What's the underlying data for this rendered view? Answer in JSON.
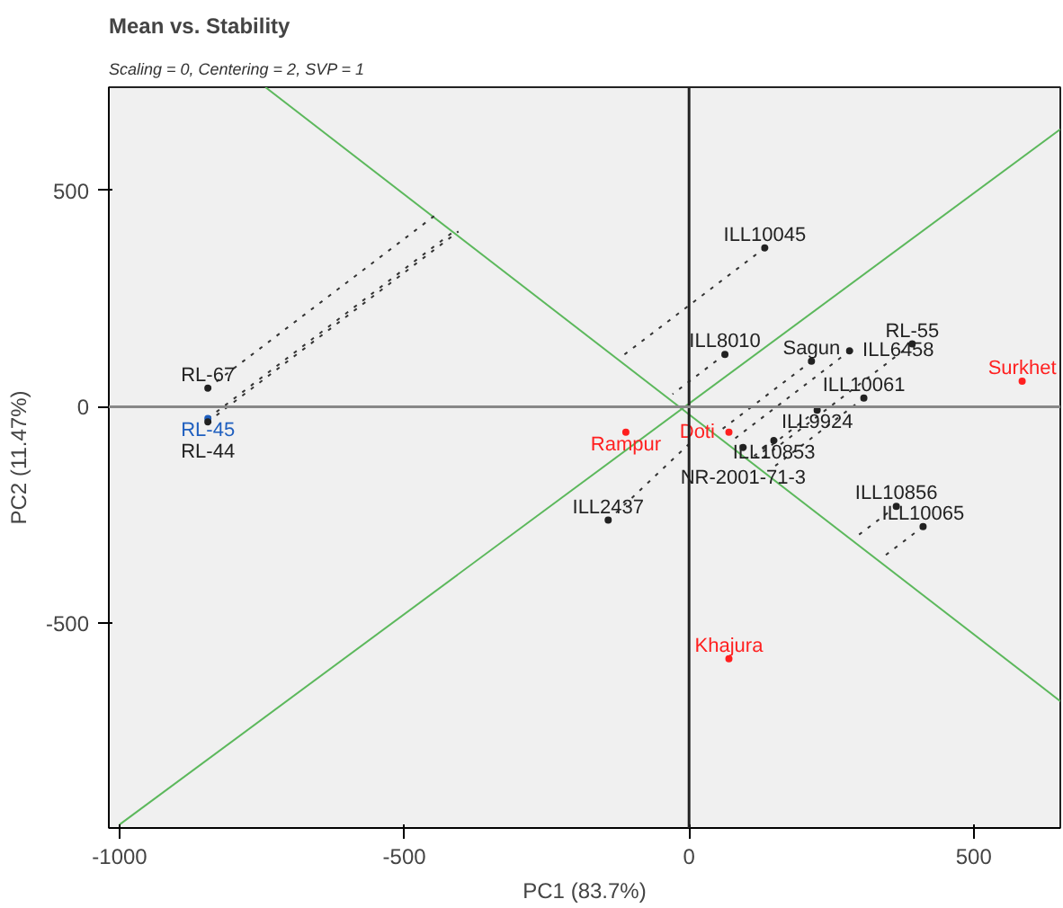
{
  "chart_data": {
    "type": "scatter",
    "title": "Mean vs. Stability",
    "subtitle": "Scaling = 0, Centering = 2, SVP = 1",
    "xlabel": "PC1 (83.7%)",
    "ylabel": "PC2 (11.47%)",
    "xlim": [
      -1019,
      652
    ],
    "ylim": [
      -973,
      738
    ],
    "xticks": [
      -1000,
      -500,
      0,
      500
    ],
    "yticks": [
      -500,
      0,
      500
    ],
    "grid": false,
    "legend": false,
    "ref_lines": [
      {
        "axis": "x",
        "value": 0,
        "color": "#222222"
      },
      {
        "axis": "y",
        "value": 0,
        "color": "#888888"
      }
    ],
    "series": [
      {
        "type": "line",
        "color": "#5cb85c",
        "x": [
          -744,
          652
        ],
        "values": [
          738,
          -680
        ]
      },
      {
        "type": "line",
        "color": "#5cb85c",
        "x": [
          -1000,
          652
        ],
        "values": [
          -965,
          641
        ]
      },
      {
        "type": "line",
        "color": "#333333",
        "line_style": "dotted",
        "x": [
          133,
          -117
        ],
        "values": [
          367,
          117
        ]
      },
      {
        "type": "line",
        "color": "#333333",
        "line_style": "dotted",
        "x": [
          63,
          -29
        ],
        "values": [
          121,
          29
        ]
      },
      {
        "type": "line",
        "color": "#333333",
        "line_style": "dotted",
        "x": [
          215,
          55
        ],
        "values": [
          105,
          -55
        ]
      },
      {
        "type": "line",
        "color": "#333333",
        "line_style": "dotted",
        "x": [
          282,
          77
        ],
        "values": [
          129,
          -77
        ]
      },
      {
        "type": "line",
        "color": "#333333",
        "line_style": "dotted",
        "x": [
          392,
          124
        ],
        "values": [
          145,
          -124
        ]
      },
      {
        "type": "line",
        "color": "#333333",
        "line_style": "dotted",
        "x": [
          307,
          144
        ],
        "values": [
          20,
          -144
        ]
      },
      {
        "type": "line",
        "color": "#333333",
        "line_style": "dotted",
        "x": [
          225,
          117
        ],
        "values": [
          -8,
          -117
        ]
      },
      {
        "type": "line",
        "color": "#333333",
        "line_style": "dotted",
        "x": [
          149,
          114
        ],
        "values": [
          -78,
          -114
        ]
      },
      {
        "type": "line",
        "color": "#333333",
        "line_style": "dotted",
        "x": [
          364,
          297
        ],
        "values": [
          -230,
          -297
        ]
      },
      {
        "type": "line",
        "color": "#333333",
        "line_style": "dotted",
        "x": [
          411,
          344
        ],
        "values": [
          -277,
          -344
        ]
      },
      {
        "type": "line",
        "color": "#333333",
        "line_style": "dotted",
        "x": [
          -142,
          5
        ],
        "values": [
          -262,
          -80
        ]
      },
      {
        "type": "line",
        "color": "#333333",
        "line_style": "dotted",
        "x": [
          -845,
          -444
        ],
        "values": [
          43,
          444
        ]
      },
      {
        "type": "line",
        "color": "#333333",
        "line_style": "dotted",
        "x": [
          -845,
          -409
        ],
        "values": [
          -27,
          409
        ]
      },
      {
        "type": "line",
        "color": "#333333",
        "line_style": "dotted",
        "x": [
          -845,
          -405
        ],
        "values": [
          -35,
          405
        ]
      },
      {
        "name": "ILL10045",
        "marker": "circle",
        "color": "#222222",
        "x": [
          133
        ],
        "values": [
          367
        ]
      },
      {
        "name": "ILL8010",
        "marker": "circle",
        "color": "#222222",
        "x": [
          63
        ],
        "values": [
          121
        ]
      },
      {
        "name": "Sagun",
        "marker": "circle",
        "color": "#222222",
        "x": [
          215
        ],
        "values": [
          105
        ]
      },
      {
        "name": "ILL6458",
        "marker": "circle",
        "color": "#222222",
        "x": [
          282
        ],
        "values": [
          129
        ]
      },
      {
        "name": "RL-55",
        "marker": "circle",
        "color": "#222222",
        "x": [
          392
        ],
        "values": [
          145
        ]
      },
      {
        "name": "ILL10061",
        "marker": "circle",
        "color": "#222222",
        "x": [
          307
        ],
        "values": [
          20
        ]
      },
      {
        "name": "ILL9924",
        "marker": "circle",
        "color": "#222222",
        "x": [
          225
        ],
        "values": [
          -8
        ]
      },
      {
        "name": "ILL10853",
        "marker": "circle",
        "color": "#222222",
        "x": [
          149
        ],
        "values": [
          -78
        ]
      },
      {
        "name": "NR-2001-71-3",
        "marker": "circle",
        "color": "#222222",
        "x": [
          95
        ],
        "values": [
          -94
        ]
      },
      {
        "name": "ILL10856",
        "marker": "circle",
        "color": "#222222",
        "x": [
          364
        ],
        "values": [
          -230
        ]
      },
      {
        "name": "ILL10065",
        "marker": "circle",
        "color": "#222222",
        "x": [
          411
        ],
        "values": [
          -277
        ]
      },
      {
        "name": "ILL2437",
        "marker": "circle",
        "color": "#222222",
        "x": [
          -142
        ],
        "values": [
          -262
        ]
      },
      {
        "name": "RL-67",
        "marker": "circle",
        "color": "#222222",
        "x": [
          -845
        ],
        "values": [
          43
        ]
      },
      {
        "name": "RL-45",
        "marker": "circle",
        "color": "#1f5fbf",
        "x": [
          -845
        ],
        "values": [
          -27
        ]
      },
      {
        "name": "RL-44",
        "marker": "circle",
        "color": "#222222",
        "x": [
          -845
        ],
        "values": [
          -35
        ]
      },
      {
        "name": "Surkhet",
        "marker": "circle",
        "color": "#ff2020",
        "x": [
          585
        ],
        "values": [
          59
        ]
      },
      {
        "name": "Rampur",
        "marker": "circle",
        "color": "#ff2020",
        "x": [
          -111
        ],
        "values": [
          -59
        ]
      },
      {
        "name": "Doti",
        "marker": "circle",
        "color": "#ff2020",
        "x": [
          70
        ],
        "values": [
          -59
        ]
      },
      {
        "name": "Khajura",
        "marker": "circle",
        "color": "#ff2020",
        "x": [
          70
        ],
        "values": [
          -582
        ]
      }
    ]
  }
}
